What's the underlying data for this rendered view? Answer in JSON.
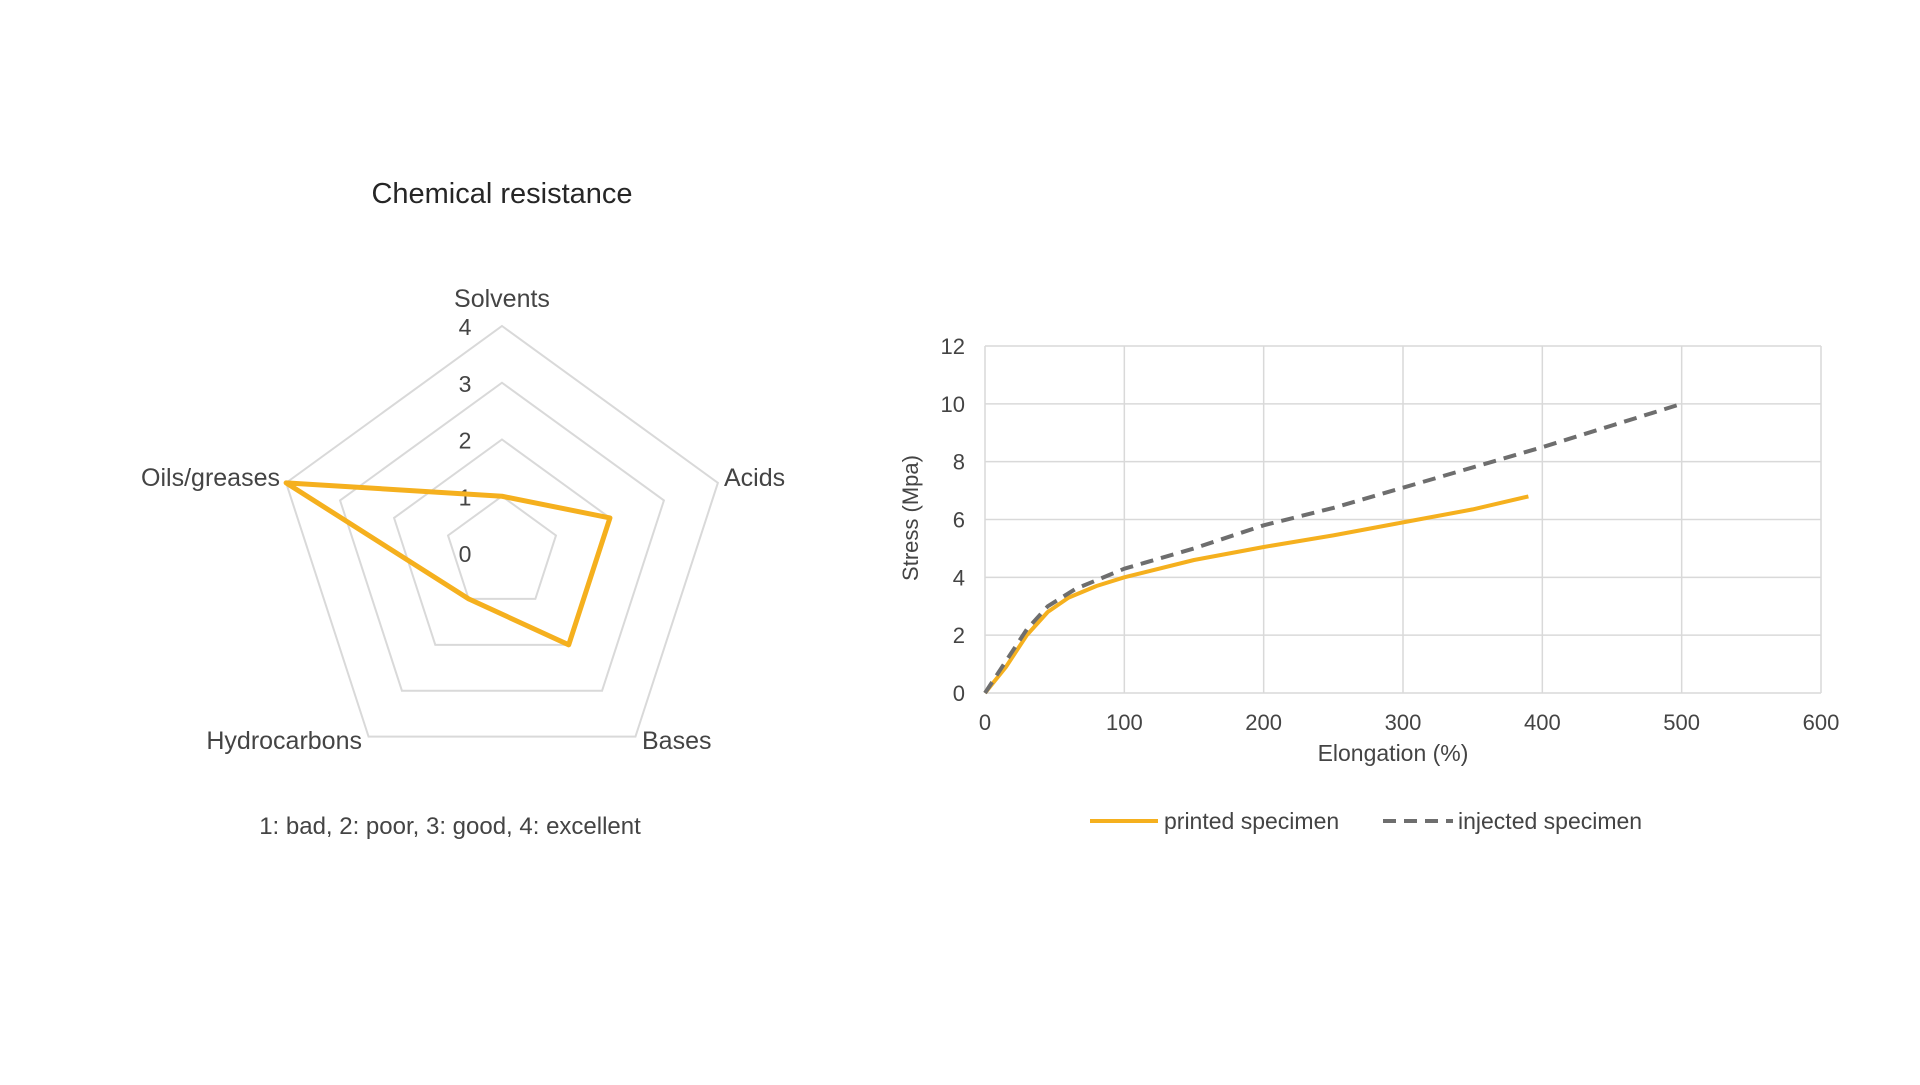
{
  "colors": {
    "accent": "#F5B01E",
    "dashed": "#6E6E6E",
    "grid": "#D9D9D9",
    "text": "#444444",
    "title": "#262626"
  },
  "chart_data": [
    {
      "type": "radar",
      "title": "Chemical resistance",
      "note": "1: bad, 2: poor, 3: good, 4: excellent",
      "axes": [
        "Solvents",
        "Acids",
        "Bases",
        "Hydrocarbons",
        "Oils/greases"
      ],
      "range": [
        0,
        4
      ],
      "ticks": [
        "0",
        "1",
        "2",
        "3",
        "4"
      ],
      "series": [
        {
          "values": [
            1,
            2,
            2,
            1,
            4
          ]
        }
      ]
    },
    {
      "type": "line",
      "xlabel": "Elongation (%)",
      "ylabel": "Stress (Mpa)",
      "xlim": [
        0,
        600
      ],
      "ylim": [
        0,
        12
      ],
      "xticks": [
        "0",
        "100",
        "200",
        "300",
        "400",
        "500",
        "600"
      ],
      "yticks": [
        "0",
        "2",
        "4",
        "6",
        "8",
        "10",
        "12"
      ],
      "grid": true,
      "legend": "bottom",
      "series": [
        {
          "name": "printed specimen",
          "style": "solid",
          "points": [
            [
              0,
              0
            ],
            [
              15,
              0.9
            ],
            [
              30,
              2.0
            ],
            [
              45,
              2.8
            ],
            [
              60,
              3.3
            ],
            [
              80,
              3.7
            ],
            [
              100,
              4.0
            ],
            [
              150,
              4.6
            ],
            [
              200,
              5.05
            ],
            [
              250,
              5.45
            ],
            [
              300,
              5.9
            ],
            [
              350,
              6.35
            ],
            [
              390,
              6.8
            ]
          ]
        },
        {
          "name": "injected specimen",
          "style": "dashed",
          "points": [
            [
              0,
              0
            ],
            [
              15,
              1.1
            ],
            [
              30,
              2.2
            ],
            [
              45,
              3.0
            ],
            [
              65,
              3.6
            ],
            [
              100,
              4.3
            ],
            [
              150,
              5.0
            ],
            [
              200,
              5.8
            ],
            [
              250,
              6.4
            ],
            [
              300,
              7.1
            ],
            [
              350,
              7.8
            ],
            [
              400,
              8.5
            ],
            [
              450,
              9.25
            ],
            [
              500,
              10.0
            ]
          ]
        }
      ]
    }
  ]
}
